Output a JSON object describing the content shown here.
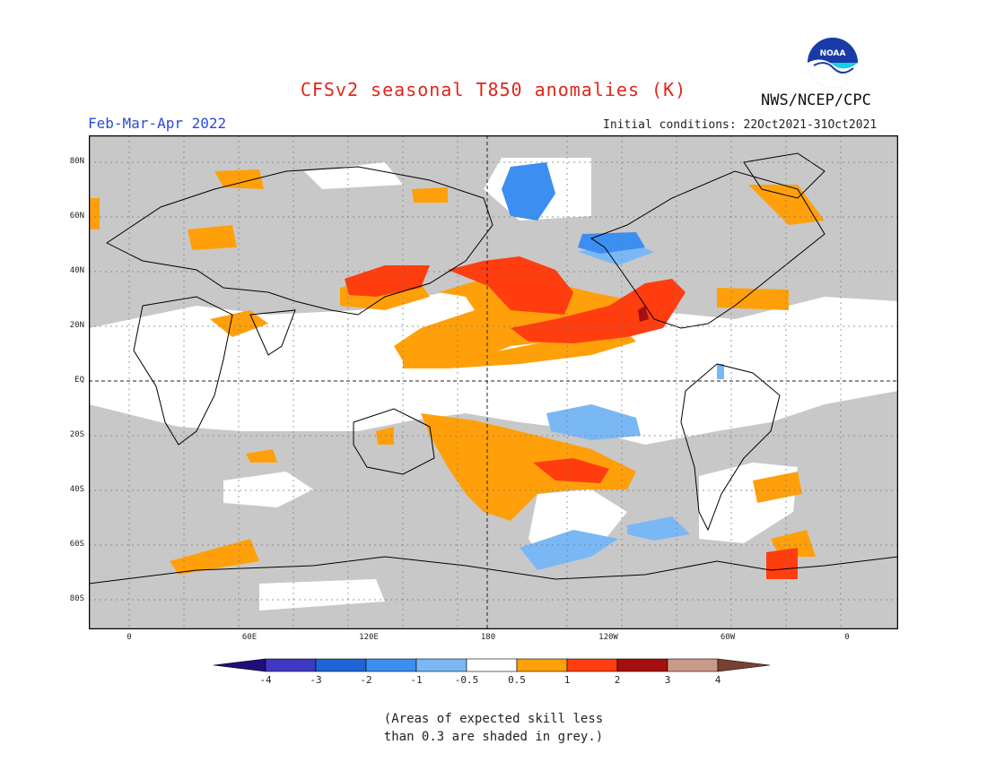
{
  "header": {
    "title": "CFSv2 seasonal T850 anomalies (K)",
    "season": "Feb-Mar-Apr 2022",
    "initial_conditions": "Initial conditions: 22Oct2021-31Oct2021",
    "agency": "NWS/NCEP/CPC",
    "logo_text": "NOAA"
  },
  "map": {
    "lat_labels": [
      "80N",
      "60N",
      "40N",
      "20N",
      "EQ",
      "20S",
      "40S",
      "60S",
      "80S"
    ],
    "lon_labels": [
      "0",
      "60E",
      "120E",
      "180",
      "120W",
      "60W",
      "0"
    ],
    "colors": {
      "skill_mask_grey": "#c8c8c8",
      "neutral_white": "#ffffff",
      "land_outline": "#000000"
    }
  },
  "legend": {
    "labels": [
      "-4",
      "-3",
      "-2",
      "-1",
      "-0.5",
      "0.5",
      "1",
      "2",
      "3",
      "4"
    ],
    "colors": [
      "#1f0f7a",
      "#3f38c2",
      "#1f64d6",
      "#3c8ef0",
      "#7ab8f5",
      "#ffffff",
      "#ffa00a",
      "#ff3d0f",
      "#a50f0f",
      "#c99a8a",
      "#7a4030"
    ],
    "note_line1": "(Areas of expected skill less",
    "note_line2": "than 0.3 are shaded in grey.)"
  }
}
